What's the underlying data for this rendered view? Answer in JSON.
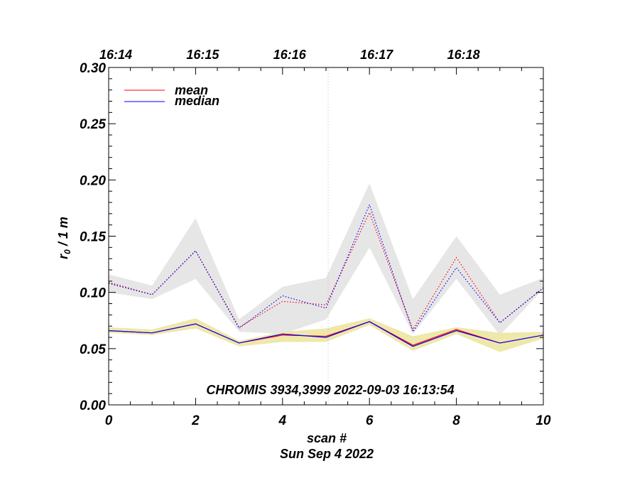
{
  "chart_data": {
    "type": "line",
    "title": "",
    "xlabel": "scan #",
    "ylabel": "r₀ / 1 m",
    "ylabel_main": "r",
    "ylabel_sub": "0",
    "ylabel_rest": " / 1 m",
    "date_label": "Sun Sep  4 2022",
    "annotation": "CHROMIS 3934,3999 2022-09-03 16:13:54",
    "xlim": [
      0,
      10
    ],
    "ylim": [
      0,
      0.3
    ],
    "x_ticks": [
      "0",
      "2",
      "4",
      "6",
      "8",
      "10"
    ],
    "x_tick_values": [
      0,
      2,
      4,
      6,
      8,
      10
    ],
    "y_ticks": [
      "0.00",
      "0.05",
      "0.10",
      "0.15",
      "0.20",
      "0.25",
      "0.30"
    ],
    "y_tick_values": [
      0.0,
      0.05,
      0.1,
      0.15,
      0.2,
      0.25,
      0.3
    ],
    "time_ticks": [
      {
        "label": "16:14",
        "x": 0
      },
      {
        "label": "16:15",
        "x": 2
      },
      {
        "label": "16:16",
        "x": 4
      },
      {
        "label": "16:17",
        "x": 6
      },
      {
        "label": "16:18",
        "x": 8
      }
    ],
    "marker_line_x": 5.05,
    "x": [
      0,
      1,
      2,
      3,
      4,
      5,
      6,
      7,
      8,
      9,
      10
    ],
    "legend": [
      {
        "name": "mean",
        "color": "#ff0000"
      },
      {
        "name": "median",
        "color": "#0000ff"
      }
    ],
    "series": [
      {
        "name": "mean (solid)",
        "color": "#ff0000",
        "style": "solid",
        "values": [
          0.066,
          0.064,
          0.072,
          0.055,
          0.062,
          0.061,
          0.074,
          0.053,
          0.067,
          0.055,
          0.062
        ]
      },
      {
        "name": "median (solid)",
        "color": "#0000ff",
        "style": "solid",
        "values": [
          0.066,
          0.064,
          0.072,
          0.055,
          0.063,
          0.06,
          0.074,
          0.052,
          0.066,
          0.055,
          0.062
        ]
      },
      {
        "name": "mean (dotted)",
        "color": "#ff0000",
        "style": "dotted",
        "values": [
          0.109,
          0.098,
          0.137,
          0.069,
          0.092,
          0.089,
          0.171,
          0.067,
          0.131,
          0.073,
          0.104
        ]
      },
      {
        "name": "median (dotted)",
        "color": "#0000ff",
        "style": "dotted",
        "values": [
          0.108,
          0.098,
          0.137,
          0.068,
          0.097,
          0.086,
          0.178,
          0.065,
          0.122,
          0.073,
          0.104
        ]
      }
    ],
    "bands": [
      {
        "name": "upper band",
        "color": "#e6e6e6",
        "upper": [
          0.116,
          0.106,
          0.166,
          0.076,
          0.105,
          0.113,
          0.197,
          0.094,
          0.15,
          0.098,
          0.113
        ],
        "lower": [
          0.1,
          0.094,
          0.112,
          0.065,
          0.063,
          0.076,
          0.14,
          0.063,
          0.112,
          0.062,
          0.103
        ]
      },
      {
        "name": "lower band",
        "color": "#eee8aa",
        "upper": [
          0.069,
          0.067,
          0.077,
          0.057,
          0.065,
          0.068,
          0.077,
          0.061,
          0.069,
          0.064,
          0.065
        ],
        "lower": [
          0.064,
          0.062,
          0.068,
          0.052,
          0.056,
          0.056,
          0.071,
          0.048,
          0.063,
          0.047,
          0.059
        ]
      }
    ]
  }
}
